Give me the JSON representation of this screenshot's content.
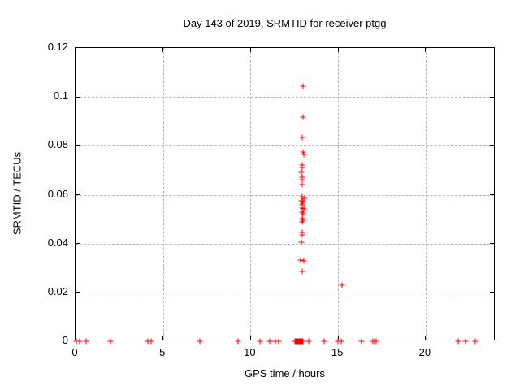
{
  "chart_data": {
    "type": "scatter",
    "title": "Day 143 of 2019, SRMTID for receiver ptgg",
    "xlabel": "GPS time / hours",
    "ylabel": "SRMTID / TECUs",
    "xlim": [
      0,
      24
    ],
    "ylim": [
      0,
      0.12
    ],
    "xticks": [
      0,
      5,
      10,
      15,
      20
    ],
    "xtick_labels": [
      "0",
      "5",
      "10",
      "15",
      "20"
    ],
    "yticks": [
      0,
      0.02,
      0.04,
      0.06,
      0.08,
      0.1,
      0.12
    ],
    "ytick_labels": [
      "0",
      "0.02",
      "0.04",
      "0.06",
      "0.08",
      "0.1",
      "0.12"
    ],
    "grid": true,
    "legend_position": "none",
    "marker": "plus",
    "marker_color": "#ff0000",
    "border_color": "#000000",
    "grid_color": "#b5b5b5",
    "series": [
      {
        "name": "SRMTID",
        "points": [
          [
            13.0,
            0.1045
          ],
          [
            13.0,
            0.0916
          ],
          [
            12.95,
            0.0833
          ],
          [
            13.0,
            0.0774
          ],
          [
            13.03,
            0.0766
          ],
          [
            12.95,
            0.0721
          ],
          [
            12.95,
            0.0712
          ],
          [
            12.92,
            0.0692
          ],
          [
            12.97,
            0.067
          ],
          [
            12.97,
            0.0662
          ],
          [
            12.95,
            0.0643
          ],
          [
            12.97,
            0.0592
          ],
          [
            13.07,
            0.0585
          ],
          [
            12.92,
            0.0574
          ],
          [
            13.01,
            0.0571
          ],
          [
            12.97,
            0.0563
          ],
          [
            12.97,
            0.0556
          ],
          [
            12.97,
            0.0546
          ],
          [
            13.03,
            0.0542
          ],
          [
            12.97,
            0.0529
          ],
          [
            13.0,
            0.0522
          ],
          [
            12.93,
            0.0501
          ],
          [
            13.01,
            0.0496
          ],
          [
            12.95,
            0.049
          ],
          [
            12.97,
            0.0446
          ],
          [
            12.97,
            0.0437
          ],
          [
            12.9,
            0.0405
          ],
          [
            12.88,
            0.0331
          ],
          [
            13.04,
            0.0329
          ],
          [
            12.95,
            0.0287
          ],
          [
            15.21,
            0.0229
          ],
          [
            0.05,
            0
          ],
          [
            0.25,
            0
          ],
          [
            0.62,
            0
          ],
          [
            2.0,
            0
          ],
          [
            4.13,
            0
          ],
          [
            4.33,
            0
          ],
          [
            7.08,
            0
          ],
          [
            9.3,
            0
          ],
          [
            10.55,
            0
          ],
          [
            11.1,
            0
          ],
          [
            11.4,
            0
          ],
          [
            11.6,
            0
          ],
          [
            12.54,
            0
          ],
          [
            12.58,
            0
          ],
          [
            12.62,
            0
          ],
          [
            12.66,
            0
          ],
          [
            12.7,
            0
          ],
          [
            12.74,
            0
          ],
          [
            12.78,
            0
          ],
          [
            12.82,
            0
          ],
          [
            12.86,
            0
          ],
          [
            12.9,
            0
          ],
          [
            12.94,
            0
          ],
          [
            12.98,
            0
          ],
          [
            13.3,
            0
          ],
          [
            14.2,
            0
          ],
          [
            15.0,
            0
          ],
          [
            15.16,
            0
          ],
          [
            16.33,
            0
          ],
          [
            17.0,
            0
          ],
          [
            17.09,
            0
          ],
          [
            17.19,
            0
          ],
          [
            21.85,
            0
          ],
          [
            22.3,
            0
          ],
          [
            22.85,
            0
          ]
        ]
      }
    ]
  }
}
